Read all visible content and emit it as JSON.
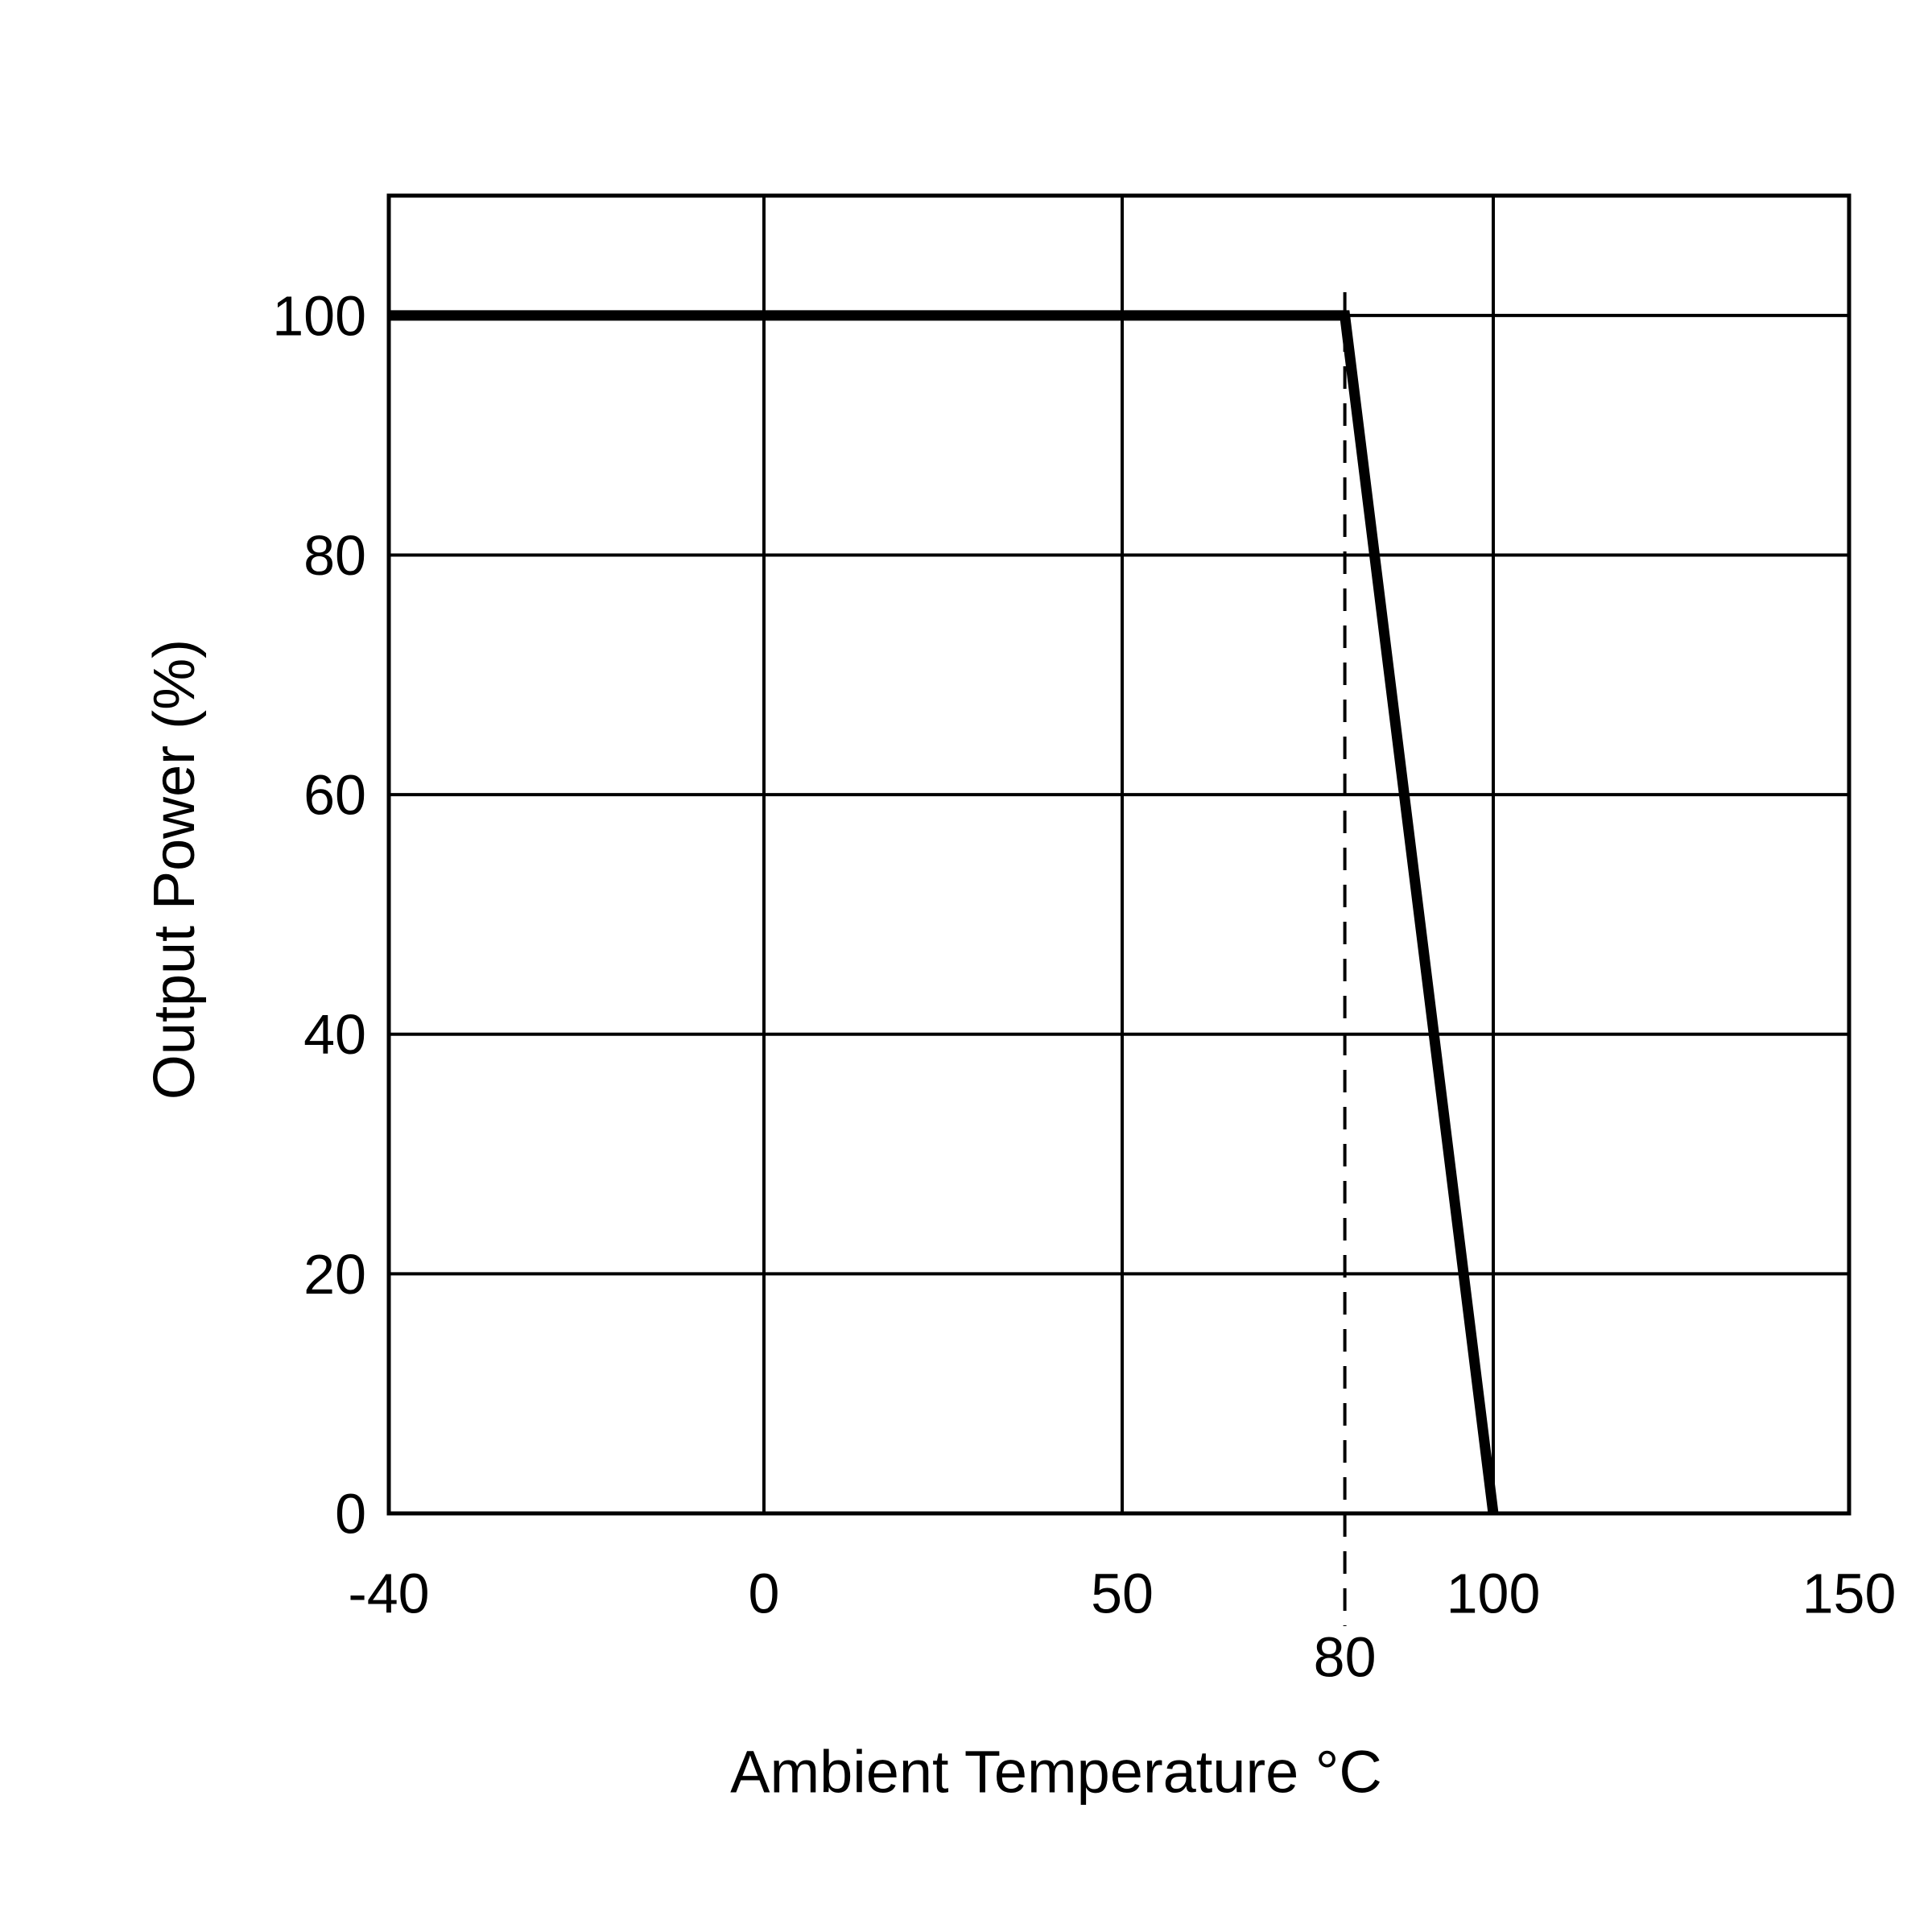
{
  "chart_data": {
    "type": "line",
    "x_label": "Ambient  Temperature °C",
    "y_label": "Output Power (%)",
    "x": [
      -40,
      80,
      100
    ],
    "series": [
      {
        "values": [
          100,
          100,
          0
        ],
        "color": "#000000"
      }
    ],
    "xlim": [
      -40,
      150
    ],
    "xticks": [
      -40,
      0,
      50,
      100,
      150
    ],
    "ylim": [
      0,
      110
    ],
    "yticks": [
      0,
      20,
      40,
      60,
      80,
      100
    ],
    "grid": true,
    "reference_lines": [
      {
        "x": 80,
        "label": "80",
        "style": "dashed"
      }
    ]
  }
}
